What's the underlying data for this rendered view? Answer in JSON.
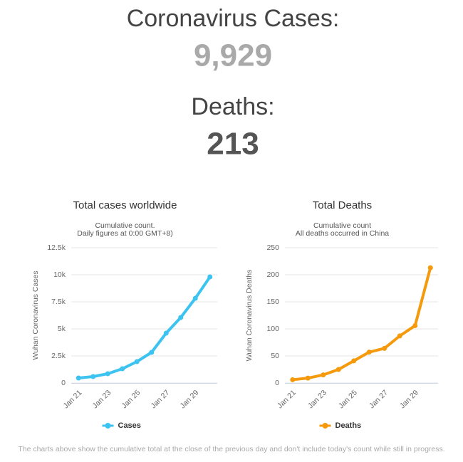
{
  "header": {
    "cases_label": "Coronavirus Cases:",
    "cases_value": "9,929",
    "deaths_label": "Deaths:",
    "deaths_value": "213"
  },
  "chart_data": [
    {
      "type": "line",
      "title": "Total cases worldwide",
      "subtitle": [
        "Cumulative count.",
        "Daily figures at 0:00 GMT+8)"
      ],
      "y_label": "Wuhan Coronavirus Cases",
      "categories": [
        "Jan 21",
        null,
        "Jan 23",
        null,
        "Jan 25",
        null,
        "Jan 27",
        null,
        "Jan 29",
        null
      ],
      "series": [
        {
          "name": "Cases",
          "color": "#3cc3f0",
          "values": [
            460,
            592,
            855,
            1316,
            1974,
            2829,
            4605,
            6053,
            7829,
            9803
          ]
        }
      ],
      "ylim": [
        0,
        12500
      ],
      "yticks": [
        0,
        {
          "value": 2500,
          "label": "2.5k"
        },
        {
          "value": 5000,
          "label": "5k"
        },
        {
          "value": 7500,
          "label": "7.5k"
        },
        {
          "value": 10000,
          "label": "10k"
        },
        {
          "value": 12500,
          "label": "12.5k"
        }
      ],
      "grid": true,
      "legend": "bottom"
    },
    {
      "type": "line",
      "title": "Total Deaths",
      "subtitle": [
        "Cumulative count",
        "All deaths occurred in China"
      ],
      "y_label": "Wuhan Coronavirus Deaths",
      "categories": [
        "Jan 21",
        null,
        "Jan 23",
        null,
        "Jan 25",
        null,
        "Jan 27",
        null,
        "Jan 29",
        null
      ],
      "series": [
        {
          "name": "Deaths",
          "color": "#f49a0c",
          "values": [
            6,
            9,
            15,
            25,
            41,
            57,
            64,
            87,
            106,
            213
          ]
        }
      ],
      "ylim": [
        0,
        250
      ],
      "yticks": [
        0,
        50,
        100,
        150,
        200,
        250
      ],
      "grid": true,
      "legend": "bottom"
    }
  ],
  "footnote": "The charts above show the cumulative total at the close of the previous day and don't include today's count while still in progress."
}
